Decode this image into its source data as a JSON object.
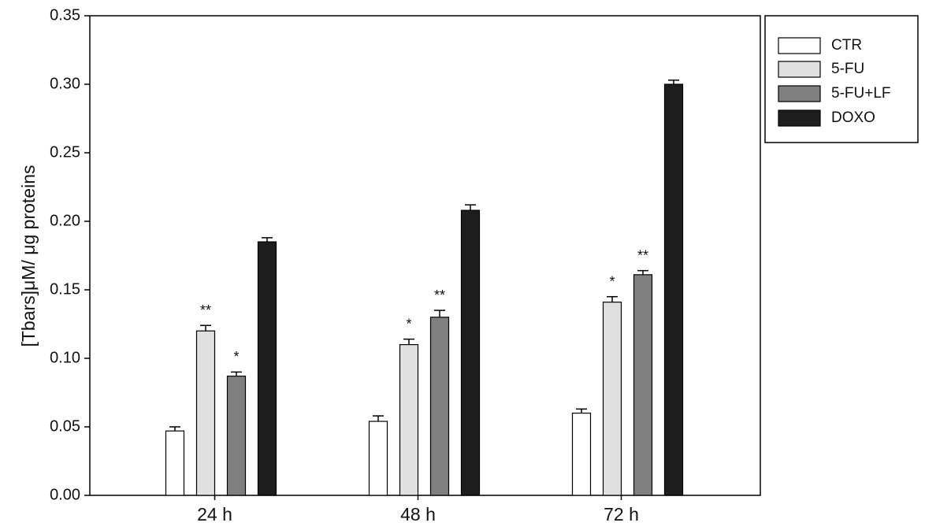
{
  "chart_data": {
    "type": "bar",
    "y_label": "[Tbars]μM/ μg proteins",
    "categories": [
      "24 h",
      "48 h",
      "72 h"
    ],
    "series": [
      {
        "name": "CTR",
        "color": "#ffffff",
        "values": [
          0.047,
          0.054,
          0.06
        ],
        "errors": [
          0.003,
          0.004,
          0.003
        ],
        "significance": [
          null,
          null,
          null
        ]
      },
      {
        "name": "5-FU",
        "color": "#e0e0e0",
        "values": [
          0.12,
          0.11,
          0.141
        ],
        "errors": [
          0.004,
          0.004,
          0.004
        ],
        "significance": [
          "**",
          "*",
          "*"
        ]
      },
      {
        "name": "5-FU+LF",
        "color": "#808080",
        "values": [
          0.087,
          0.13,
          0.161
        ],
        "errors": [
          0.003,
          0.005,
          0.003
        ],
        "significance": [
          "*",
          "**",
          "**"
        ]
      },
      {
        "name": "DOXO",
        "color": "#1e1e1e",
        "values": [
          0.185,
          0.208,
          0.3
        ],
        "errors": [
          0.003,
          0.004,
          0.003
        ],
        "significance": [
          null,
          null,
          null
        ]
      }
    ],
    "ylim": [
      0,
      0.35
    ],
    "yticks": [
      {
        "value": 0,
        "label": "0.00"
      },
      {
        "value": 0.05,
        "label": "0.05"
      },
      {
        "value": 0.1,
        "label": "0.10"
      },
      {
        "value": 0.15,
        "label": "0.15"
      },
      {
        "value": 0.2,
        "label": "0.20"
      },
      {
        "value": 0.25,
        "label": "0.25"
      },
      {
        "value": 0.3,
        "label": "0.30"
      },
      {
        "value": 0.35,
        "label": "0.35"
      }
    ],
    "legend": "outside-right"
  }
}
